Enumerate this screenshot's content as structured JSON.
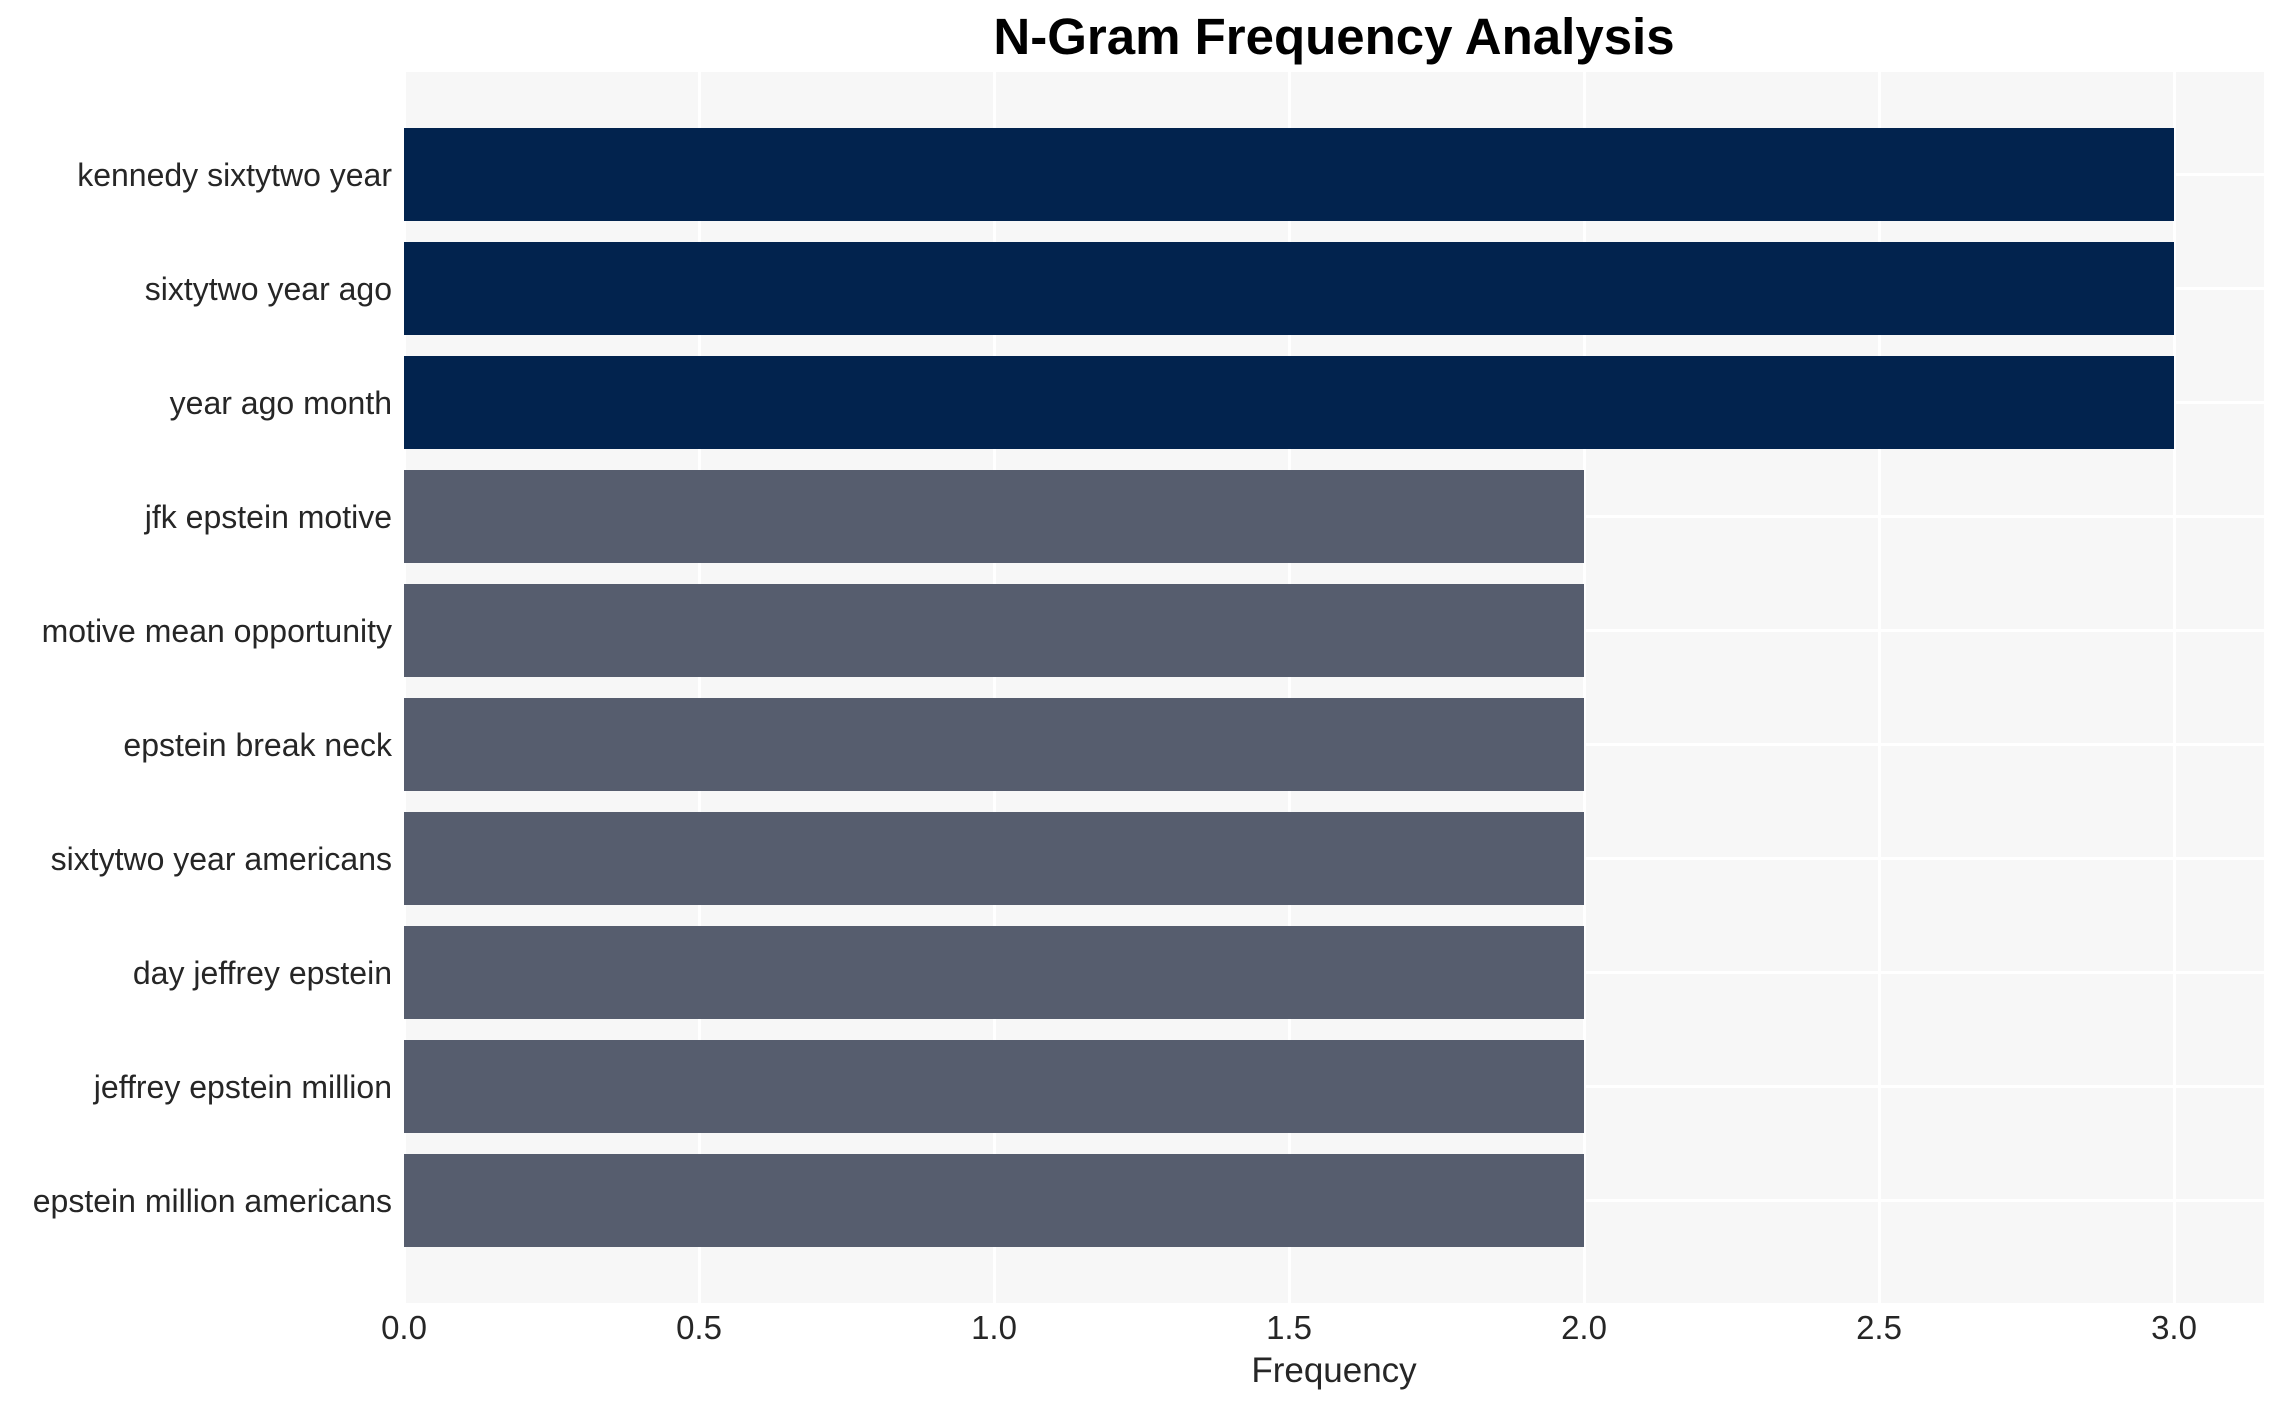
{
  "chart_data": {
    "type": "bar",
    "orientation": "horizontal",
    "title": "N-Gram Frequency Analysis",
    "xlabel": "Frequency",
    "ylabel": "",
    "categories": [
      "kennedy sixtytwo year",
      "sixtytwo year ago",
      "year ago month",
      "jfk epstein motive",
      "motive mean opportunity",
      "epstein break neck",
      "sixtytwo year americans",
      "day jeffrey epstein",
      "jeffrey epstein million",
      "epstein million americans"
    ],
    "values": [
      3,
      3,
      3,
      2,
      2,
      2,
      2,
      2,
      2,
      2
    ],
    "xlim": [
      0,
      3.15
    ],
    "x_tick_values": [
      0,
      0.5,
      1,
      1.5,
      2,
      2.5,
      3
    ],
    "x_tick_labels": [
      "0.0",
      "0.5",
      "1.0",
      "1.5",
      "2.0",
      "2.5",
      "3.0"
    ],
    "grid": true,
    "legend_position": "none",
    "colors": {
      "bar_highlight": "#02234e",
      "bar_normal": "#565d6e",
      "plot_background": "#f7f7f7",
      "gridline": "#ffffff",
      "tick_text": "#262626",
      "title_text": "#000000"
    }
  }
}
